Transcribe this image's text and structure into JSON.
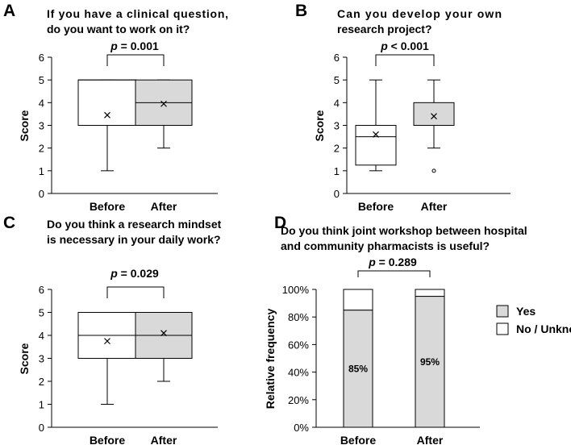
{
  "chart_data": [
    {
      "panel": "A",
      "type": "box",
      "title_lines": [
        "If you have a clinical question,",
        "do you want to work on it?"
      ],
      "ylabel": "Score",
      "ylim": [
        0,
        6
      ],
      "yticks": [
        "0",
        "1",
        "2",
        "3",
        "4",
        "5",
        "6"
      ],
      "categories": [
        "Before",
        "After"
      ],
      "series": [
        {
          "name": "Before",
          "min": 1,
          "q1": 3,
          "median": 5,
          "q3": 5,
          "max": 5,
          "mean": 3.45,
          "fill": "#ffffff",
          "outliers": []
        },
        {
          "name": "After",
          "min": 2,
          "q1": 3,
          "median": 4,
          "q3": 5,
          "max": 5,
          "mean": 3.95,
          "fill": "#d9d9d9",
          "outliers": []
        }
      ],
      "pvalue": {
        "p": "p",
        "text": " = 0.001"
      }
    },
    {
      "panel": "B",
      "type": "box",
      "title_lines": [
        "Can you develop your own",
        "research project?"
      ],
      "ylabel": "Score",
      "ylim": [
        0,
        6
      ],
      "yticks": [
        "0",
        "1",
        "2",
        "3",
        "4",
        "5",
        "6"
      ],
      "categories": [
        "Before",
        "After"
      ],
      "series": [
        {
          "name": "Before",
          "min": 1,
          "q1": 1.25,
          "median": 2.5,
          "q3": 3,
          "max": 5,
          "mean": 2.6,
          "fill": "#ffffff",
          "outliers": []
        },
        {
          "name": "After",
          "min": 2,
          "q1": 3,
          "median": 3,
          "q3": 4,
          "max": 5,
          "mean": 3.4,
          "fill": "#d9d9d9",
          "outliers": [
            1
          ]
        }
      ],
      "pvalue": {
        "p": "p",
        "text": " < 0.001"
      }
    },
    {
      "panel": "C",
      "type": "box",
      "title_lines": [
        "Do you think a research mindset",
        "is necessary in your daily work?"
      ],
      "ylabel": "Score",
      "ylim": [
        0,
        6
      ],
      "yticks": [
        "0",
        "1",
        "2",
        "3",
        "4",
        "5",
        "6"
      ],
      "categories": [
        "Before",
        "After"
      ],
      "series": [
        {
          "name": "Before",
          "min": 1,
          "q1": 3,
          "median": 4,
          "q3": 5,
          "max": 5,
          "mean": 3.75,
          "fill": "#ffffff",
          "outliers": []
        },
        {
          "name": "After",
          "min": 2,
          "q1": 3,
          "median": 4,
          "q3": 5,
          "max": 5,
          "mean": 4.1,
          "fill": "#d9d9d9",
          "outliers": []
        }
      ],
      "pvalue": {
        "p": "p",
        "text": " = 0.029"
      }
    },
    {
      "panel": "D",
      "type": "stacked-bar",
      "title_lines": [
        "Do you think joint workshop between hospital",
        "and community pharmacists is useful?"
      ],
      "ylabel": "Relative frequency",
      "ylim": [
        0,
        100
      ],
      "yticks": [
        "0%",
        "20%",
        "40%",
        "60%",
        "80%",
        "100%"
      ],
      "categories": [
        "Before",
        "After"
      ],
      "series": [
        {
          "name": "Yes",
          "values": [
            85,
            95
          ],
          "labels": [
            "85%",
            "95%"
          ],
          "color": "#d9d9d9"
        },
        {
          "name": "No / Unknown",
          "values": [
            15,
            5
          ],
          "color": "#ffffff"
        }
      ],
      "legend": [
        "Yes",
        "No / Unknown"
      ],
      "pvalue": {
        "p": "p",
        "text": " = 0.289"
      }
    }
  ]
}
